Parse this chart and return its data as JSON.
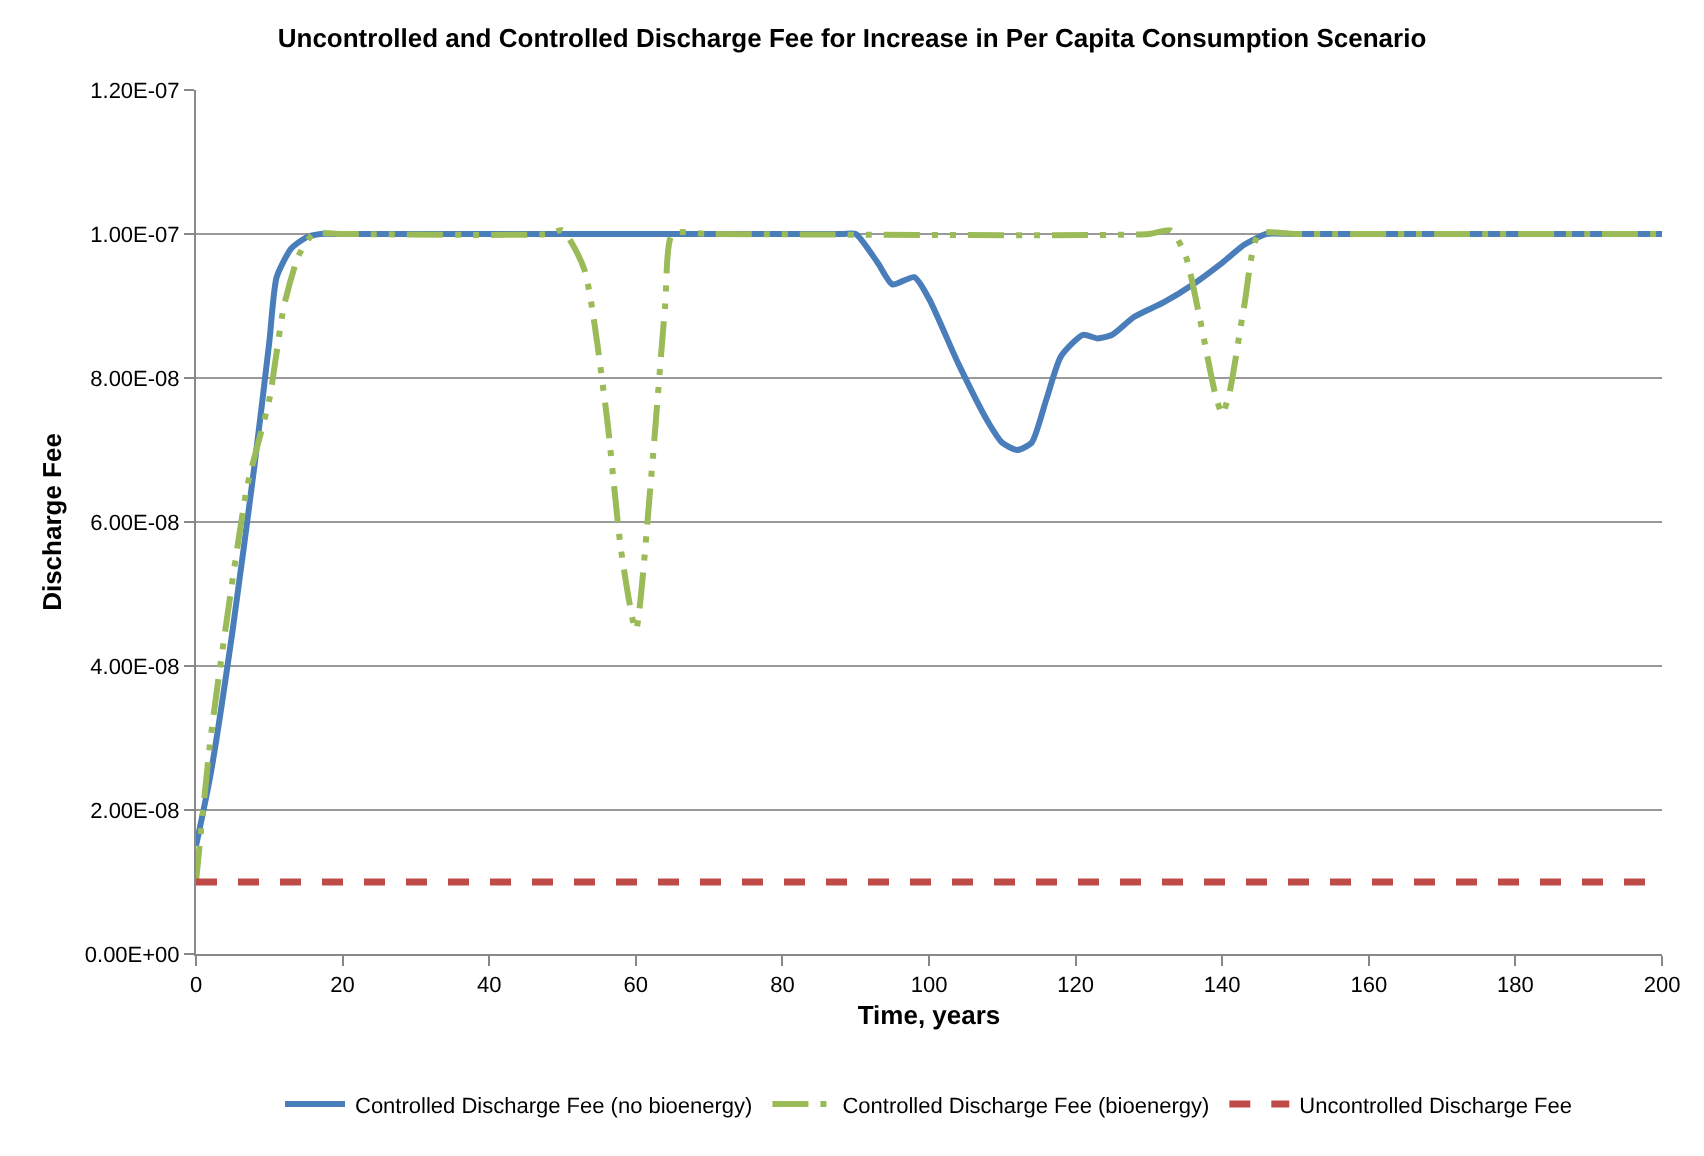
{
  "chart_data": {
    "type": "line",
    "title": "Uncontrolled and Controlled Discharge Fee for Increase in Per Capita Consumption Scenario",
    "xlabel": "Time, years",
    "ylabel": "Discharge Fee",
    "xlim": [
      0,
      200
    ],
    "xticks": [
      0,
      20,
      40,
      60,
      80,
      100,
      120,
      140,
      160,
      180,
      200
    ],
    "ylim": [
      0,
      1.2e-07
    ],
    "yticks": [
      {
        "value": 0,
        "label": "0.00E+00"
      },
      {
        "value": 2e-08,
        "label": "2.00E-08"
      },
      {
        "value": 4e-08,
        "label": "4.00E-08"
      },
      {
        "value": 6e-08,
        "label": "6.00E-08"
      },
      {
        "value": 8e-08,
        "label": "8.00E-08"
      },
      {
        "value": 1e-07,
        "label": "1.00E-07"
      },
      {
        "value": 1.2e-07,
        "label": "1.20E-07"
      }
    ],
    "grid": "y",
    "legend": "bottom",
    "marker": "none",
    "series": [
      {
        "name": "Controlled Discharge Fee (no bioenergy)",
        "color": "#4a7ebb",
        "line_style": "solid",
        "x": [
          0,
          2,
          5,
          8,
          10,
          11,
          13,
          15,
          17,
          20,
          88,
          90,
          93,
          95,
          98,
          100,
          104,
          108,
          110,
          112,
          114,
          116,
          118,
          121,
          123,
          125,
          128,
          132,
          136,
          140,
          143,
          146,
          150,
          200
        ],
        "values": [
          1.5e-08,
          2.5e-08,
          4.5e-08,
          6.8e-08,
          8.5e-08,
          9.4e-08,
          9.8e-08,
          9.95e-08,
          1e-07,
          1e-07,
          1e-07,
          1e-07,
          9.6e-08,
          9.3e-08,
          9.4e-08,
          9.1e-08,
          8.2e-08,
          7.4e-08,
          7.1e-08,
          7e-08,
          7.1e-08,
          7.7e-08,
          8.3e-08,
          8.6e-08,
          8.55e-08,
          8.6e-08,
          8.85e-08,
          9.05e-08,
          9.3e-08,
          9.6e-08,
          9.85e-08,
          1e-07,
          1e-07,
          1e-07
        ]
      },
      {
        "name": "Controlled Discharge Fee (bioenergy)",
        "color": "#9bbb59",
        "line_style": "dashdot",
        "x": [
          0,
          2,
          4,
          7,
          10,
          12,
          14,
          16,
          20,
          48,
          50,
          53,
          56,
          58,
          60,
          62,
          64,
          65,
          70,
          130,
          133,
          135,
          137,
          139,
          140,
          141,
          143,
          145,
          150,
          200
        ],
        "values": [
          1e-08,
          3e-08,
          4.5e-08,
          6.5e-08,
          7.7e-08,
          9e-08,
          9.7e-08,
          1e-07,
          1e-07,
          1e-07,
          1.005e-07,
          9.5e-08,
          7.5e-08,
          5.6e-08,
          4.5e-08,
          6.5e-08,
          9e-08,
          1e-07,
          1e-07,
          1e-07,
          1.005e-07,
          9.7e-08,
          8.8e-08,
          7.8e-08,
          7.5e-08,
          7.8e-08,
          9e-08,
          1e-07,
          1e-07,
          1e-07
        ]
      },
      {
        "name": "Uncontrolled Discharge Fee",
        "color": "#be4b48",
        "line_style": "dashed",
        "x": [
          0,
          200
        ],
        "values": [
          1e-08,
          1e-08
        ]
      }
    ]
  }
}
